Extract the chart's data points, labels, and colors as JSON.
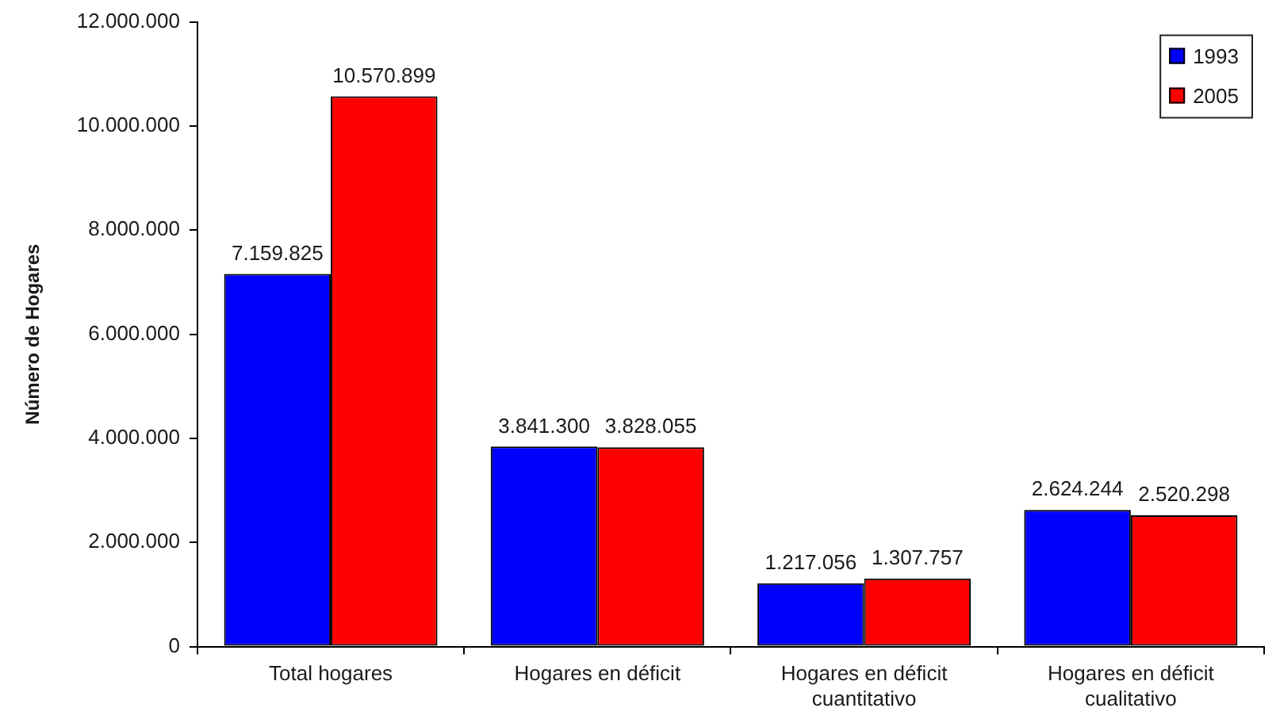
{
  "chart_data": {
    "type": "bar",
    "ylabel": "Número de Hogares",
    "categories": [
      "Total hogares",
      "Hogares en déficit",
      "Hogares en déficit\ncuantitativo",
      "Hogares en déficit\ncualitativo"
    ],
    "series": [
      {
        "name": "1993",
        "color": "#0000ff",
        "values": [
          7159825,
          3841300,
          1217056,
          2624244
        ],
        "value_labels": [
          "7.159.825",
          "3.841.300",
          "1.217.056",
          "2.624.244"
        ]
      },
      {
        "name": "2005",
        "color": "#ff0000",
        "values": [
          10570899,
          3828055,
          1307757,
          2520298
        ],
        "value_labels": [
          "10.570.899",
          "3.828.055",
          "1.307.757",
          "2.520.298"
        ]
      }
    ],
    "ylim": [
      0,
      12000000
    ],
    "yticks": [
      0,
      {
        "value": 2000000,
        "label": "2.000.000"
      },
      {
        "value": 4000000,
        "label": "4.000.000"
      },
      {
        "value": 6000000,
        "label": "6.000.000"
      },
      {
        "value": 8000000,
        "label": "8.000.000"
      },
      {
        "value": 10000000,
        "label": "10.000.000"
      },
      {
        "value": 12000000,
        "label": "12.000.000"
      }
    ],
    "legend": "top right"
  }
}
